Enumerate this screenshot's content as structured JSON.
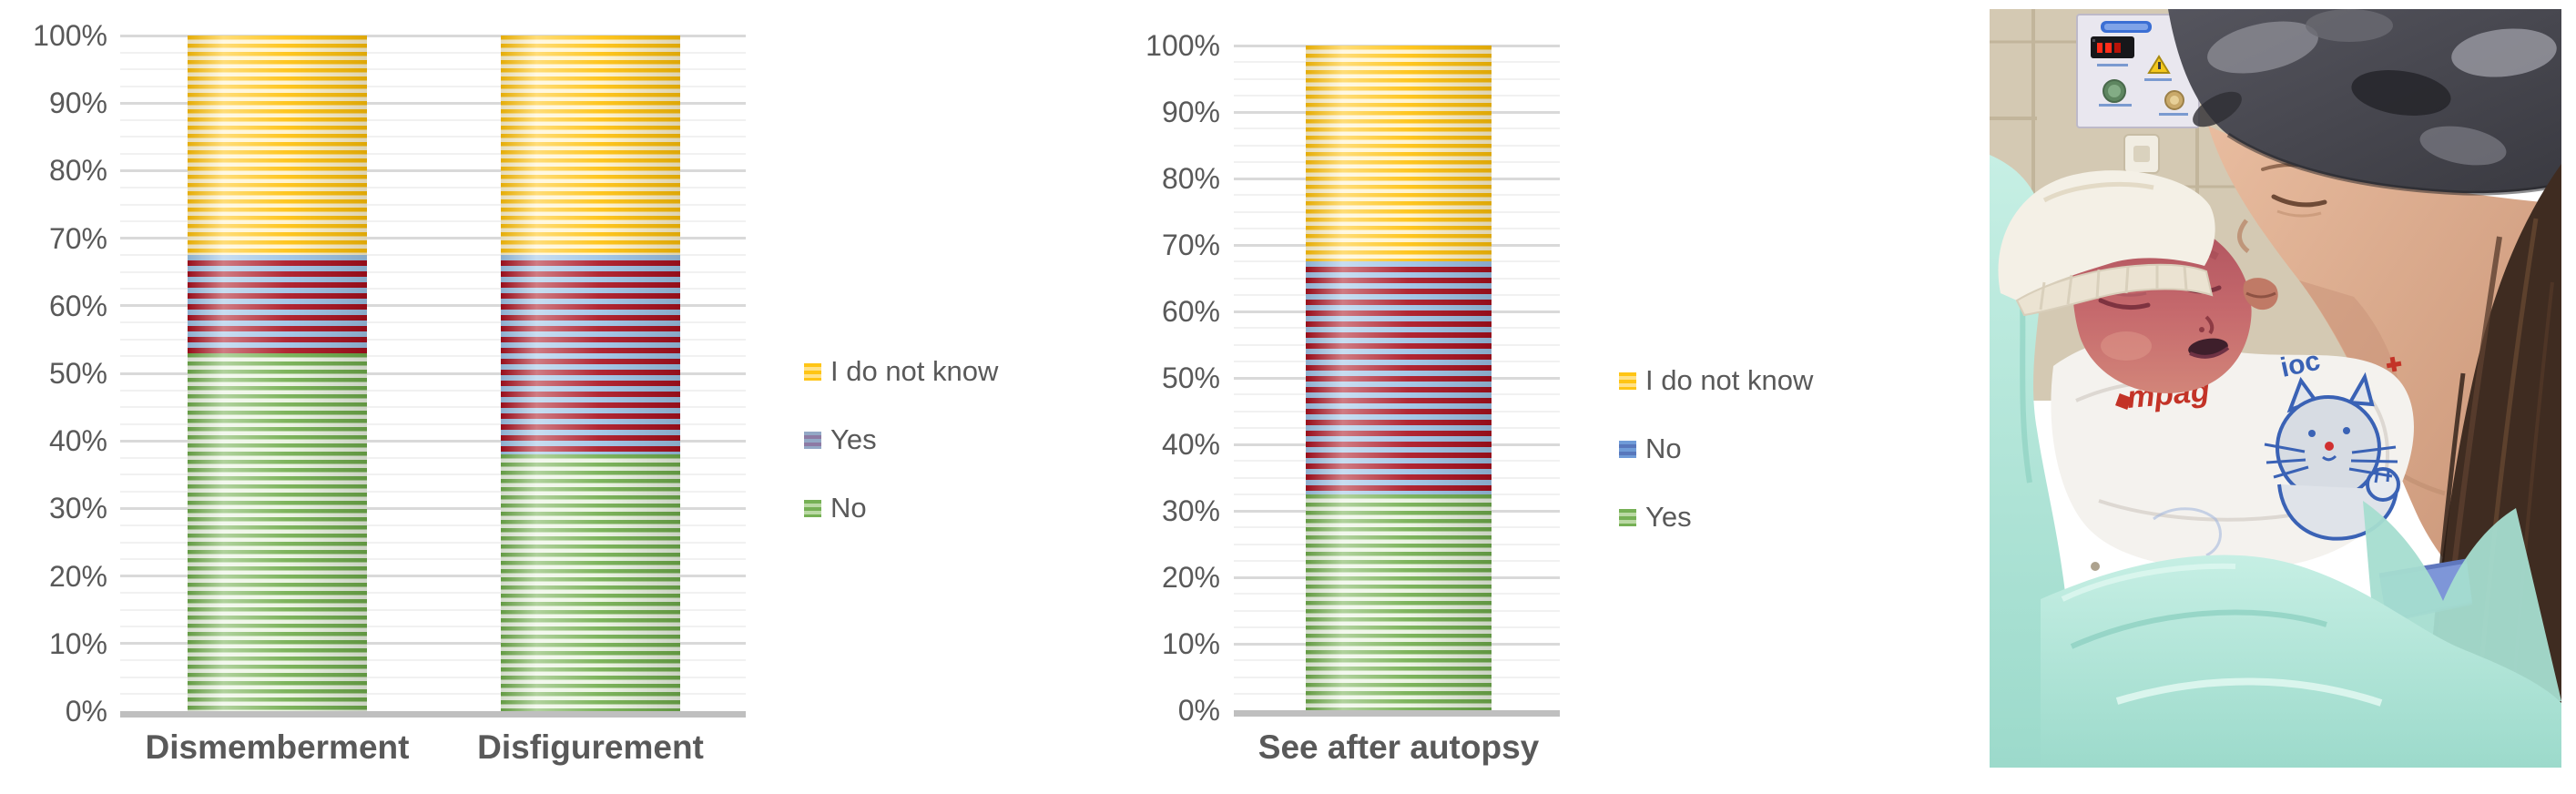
{
  "figure": {
    "background": "#FFFFFF"
  },
  "chart_data": [
    {
      "type": "bar",
      "stacked": true,
      "title": "",
      "categories": [
        "Dismemberment",
        "Disfigurement"
      ],
      "series": [
        {
          "name": "No",
          "values": [
            53,
            38
          ],
          "fill": {
            "a": "#6FAC4B",
            "b": "#EAF3E1",
            "period": 9
          },
          "legend_swatch": {
            "a": "#76B055",
            "b": "#BBD9A5"
          }
        },
        {
          "name": "Yes",
          "values": [
            14.5,
            29.5
          ],
          "fill": {
            "a": "#9CC2E5",
            "b": "#A90F1D",
            "period": 12
          },
          "legend_swatch": {
            "a": "#93A8C6",
            "b": "#8D7AA4"
          }
        },
        {
          "name": "I do not know",
          "values": [
            32.5,
            32.5
          ],
          "fill": {
            "a": "#FFC008",
            "b": "#FFF3CC",
            "period": 9
          },
          "legend_swatch": {
            "a": "#FFC515",
            "b": "#FFE28A"
          }
        }
      ],
      "legend_order": [
        "I do not know",
        "Yes",
        "No"
      ],
      "ylabel": "",
      "xlabel": "",
      "ylim": [
        0,
        100
      ],
      "y_axis": {
        "tick_labels": [
          "0%",
          "10%",
          "20%",
          "30%",
          "40%",
          "50%",
          "60%",
          "70%",
          "80%",
          "90%",
          "100%"
        ],
        "major_step": 10,
        "minor_step": 2.5,
        "grid": true
      },
      "axis_line_color": "#BFBFBF",
      "legend_position": "right"
    },
    {
      "type": "bar",
      "stacked": true,
      "title": "",
      "categories": [
        "See after autopsy"
      ],
      "series": [
        {
          "name": "Yes",
          "values": [
            32.5
          ],
          "fill": {
            "a": "#6FAC4B",
            "b": "#EAF3E1",
            "period": 9
          },
          "legend_swatch": {
            "a": "#76B055",
            "b": "#BBD9A5"
          }
        },
        {
          "name": "No",
          "values": [
            35
          ],
          "fill": {
            "a": "#9CC2E5",
            "b": "#A90F1D",
            "period": 12
          },
          "legend_swatch": {
            "a": "#6F9BD8",
            "b": "#5877BC"
          }
        },
        {
          "name": "I do not know",
          "values": [
            32.5
          ],
          "fill": {
            "a": "#FFC008",
            "b": "#FFF3CC",
            "period": 9
          },
          "legend_swatch": {
            "a": "#FFC515",
            "b": "#FFE28A"
          }
        }
      ],
      "legend_order": [
        "I do not know",
        "No",
        "Yes"
      ],
      "ylabel": "",
      "xlabel": "",
      "ylim": [
        0,
        100
      ],
      "y_axis": {
        "tick_labels": [
          "0%",
          "10%",
          "20%",
          "30%",
          "40%",
          "50%",
          "60%",
          "70%",
          "80%",
          "90%",
          "100%"
        ],
        "major_step": 10,
        "minor_step": 2.5,
        "grid": true
      },
      "axis_line_color": "#BFBFBF",
      "legend_position": "right"
    }
  ],
  "photo": {
    "alt": "A mother wearing a dark grey knit beanie kisses the cheek of her newborn baby. The baby has a flushed red face, closed eyes, a white knit hat, and is wrapped in a white blanket with a blue cat drawing, lying on mint-green cloth in a hospital room with a wall-mounted medical control panel.",
    "blanket_text_red": "mpag",
    "blanket_text_blue": "ioc",
    "palette": {
      "wall": "#D9CEB8",
      "panel": "#E9E7EF",
      "led_display": "#FF2D1A",
      "teal_blanket": "#B5E7DB",
      "white_blanket": "#F4F2EE",
      "cat_outline": "#3A62B5",
      "baby_skin": "#C2656C",
      "mother_skin": "#D9A98D",
      "beanie": "#45454C",
      "hair": "#3F2C21",
      "wristband": "#7E96D8"
    }
  }
}
